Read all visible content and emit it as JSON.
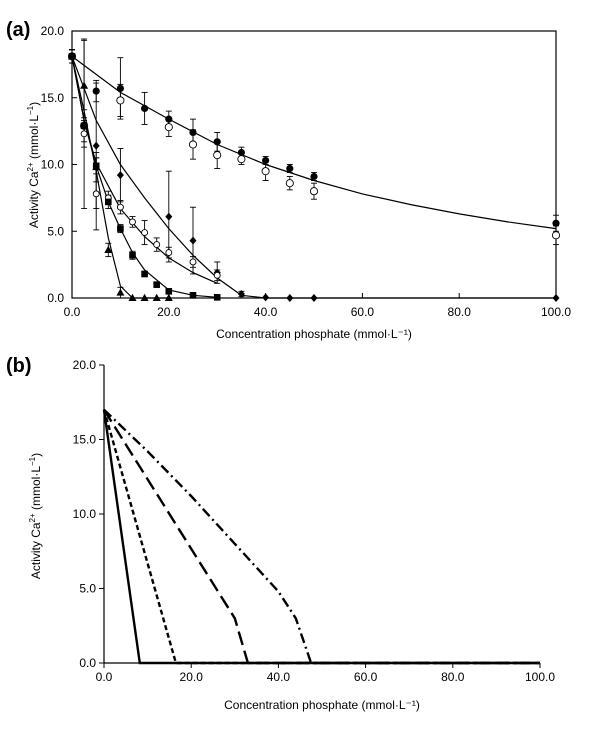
{
  "chart_data": [
    {
      "panel_label": "(a)",
      "type": "scatter",
      "xlabel": "Concentration phosphate (mmol·L⁻¹)",
      "ylabel_main": "Activity Ca",
      "ylabel_sup1": "2+",
      "ylabel_unit": " (mmol·L",
      "ylabel_sup2": "−1",
      "ylabel_close": ")",
      "xlim": [
        0,
        100
      ],
      "ylim": [
        0,
        20
      ],
      "x_ticks": [
        "0.0",
        "20.0",
        "40.0",
        "60.0",
        "80.0",
        "100.0"
      ],
      "y_ticks": [
        "0.0",
        "5.0",
        "10.0",
        "15.0",
        "20.0"
      ],
      "grid": false,
      "series": [
        {
          "marker": "circle-filled",
          "x": [
            0,
            5,
            10,
            15,
            20,
            25,
            30,
            35,
            40,
            45,
            50,
            100
          ],
          "y": [
            18.1,
            15.5,
            15.7,
            14.2,
            13.4,
            12.4,
            11.7,
            10.9,
            10.3,
            9.7,
            9.1,
            5.6
          ],
          "err": [
            0.5,
            0.8,
            2.3,
            1.2,
            0.6,
            1.0,
            0.7,
            0.4,
            0.3,
            0.3,
            0.3,
            0.6
          ],
          "fit": [
            [
              0,
              18.1
            ],
            [
              10,
              15.4
            ],
            [
              20,
              13.4
            ],
            [
              30,
              11.5
            ],
            [
              40,
              10.0
            ],
            [
              50,
              8.8
            ],
            [
              60,
              7.8
            ],
            [
              70,
              7.0
            ],
            [
              80,
              6.3
            ],
            [
              90,
              5.7
            ],
            [
              100,
              5.2
            ]
          ]
        },
        {
          "marker": "circle-open",
          "x": [
            0,
            2.5,
            10,
            20,
            25,
            30,
            35,
            40,
            45,
            50,
            100
          ],
          "y": [
            18.1,
            12.9,
            14.8,
            12.8,
            11.5,
            10.7,
            10.4,
            9.5,
            8.6,
            8.0,
            4.7
          ],
          "err": [
            0.5,
            1.2,
            1.2,
            0.7,
            1.1,
            1.0,
            0.4,
            0.7,
            0.5,
            0.6,
            0.7
          ],
          "fit": null
        },
        {
          "marker": "diamond-filled",
          "x": [
            0,
            2.5,
            5,
            10,
            20,
            25,
            30,
            35,
            40,
            45,
            50,
            100
          ],
          "y": [
            18.1,
            13.0,
            11.4,
            9.2,
            6.1,
            4.3,
            1.9,
            0.3,
            0.05,
            0.0,
            0.0,
            0.0
          ],
          "err": [
            0.5,
            6.3,
            4.7,
            2.0,
            3.4,
            2.5,
            0.8,
            0.2,
            0.0,
            0.0,
            0.0,
            0.0
          ],
          "fit": [
            [
              0,
              18.1
            ],
            [
              5,
              13.3
            ],
            [
              10,
              10.0
            ],
            [
              15,
              7.5
            ],
            [
              20,
              5.2
            ],
            [
              25,
              3.2
            ],
            [
              30,
              1.5
            ],
            [
              35,
              0.2
            ],
            [
              40,
              0.0
            ],
            [
              45,
              0.0
            ],
            [
              100,
              0.0
            ]
          ]
        },
        {
          "marker": "circle-open-small",
          "x": [
            2.5,
            5,
            7.5,
            10,
            12.5,
            15,
            17.5,
            20,
            25,
            30
          ],
          "y": [
            12.3,
            7.8,
            7.5,
            6.8,
            5.7,
            4.9,
            4.0,
            3.4,
            2.7,
            1.7
          ],
          "err": [
            1.0,
            2.7,
            0.5,
            0.5,
            0.4,
            0.9,
            0.5,
            0.4,
            0.4,
            0.4
          ],
          "fit": [
            [
              0,
              18.1
            ],
            [
              2.5,
              13.3
            ],
            [
              5,
              10.1
            ],
            [
              10,
              6.7
            ],
            [
              15,
              4.6
            ],
            [
              20,
              3.0
            ],
            [
              25,
              1.9
            ],
            [
              30,
              1.1
            ]
          ]
        },
        {
          "marker": "square-filled",
          "x": [
            0,
            2.5,
            5,
            7.5,
            10,
            12.5,
            15,
            17.5,
            20,
            25,
            30
          ],
          "y": [
            18.1,
            12.9,
            9.9,
            7.2,
            5.2,
            3.2,
            1.8,
            1.0,
            0.5,
            0.2,
            0.05
          ],
          "err": [
            0.5,
            0.6,
            0.6,
            0.5,
            0.3,
            0.3,
            0.2,
            0.2,
            0.1,
            0.1,
            0.05
          ],
          "fit": [
            [
              0,
              18.1
            ],
            [
              2.5,
              13.3
            ],
            [
              5,
              9.9
            ],
            [
              7.5,
              7.2
            ],
            [
              10,
              5.2
            ],
            [
              12.5,
              3.4
            ],
            [
              15,
              2.1
            ],
            [
              20,
              0.6
            ],
            [
              25,
              0.2
            ],
            [
              30,
              0.05
            ]
          ]
        },
        {
          "marker": "triangle-filled",
          "x": [
            0,
            2.5,
            5,
            7.5,
            10,
            12.5,
            15,
            17.5,
            20
          ],
          "y": [
            18.1,
            15.9,
            9.8,
            3.6,
            0.4,
            0.0,
            0.0,
            0.0,
            0.0
          ],
          "err": [
            0.5,
            3.5,
            1.1,
            0.5,
            0.4,
            0.0,
            0.0,
            0.0,
            0.0
          ],
          "fit": [
            [
              0,
              18.1
            ],
            [
              2.5,
              14.0
            ],
            [
              5,
              9.5
            ],
            [
              7.5,
              4.5
            ],
            [
              10,
              0.9
            ],
            [
              12.5,
              0.0
            ],
            [
              20,
              0.0
            ]
          ]
        }
      ]
    },
    {
      "panel_label": "(b)",
      "type": "line",
      "xlabel": "Concentration phosphate (mmol·L⁻¹)",
      "ylabel_main": "Activity Ca",
      "ylabel_sup1": "2+",
      "ylabel_unit": " (mmol·L",
      "ylabel_sup2": "−1",
      "ylabel_close": ")",
      "xlim": [
        0,
        100
      ],
      "ylim": [
        0,
        20
      ],
      "x_ticks": [
        "0.0",
        "20.0",
        "40.0",
        "60.0",
        "80.0",
        "100.0"
      ],
      "y_ticks": [
        "0.0",
        "5.0",
        "10.0",
        "15.0",
        "20.0"
      ],
      "grid": false,
      "series": [
        {
          "dash": "solid",
          "x": [
            0,
            8.2,
            100
          ],
          "y": [
            17.0,
            0.0,
            0.0
          ]
        },
        {
          "dash": "short-dash",
          "x": [
            0,
            16.5,
            100
          ],
          "y": [
            17.0,
            0.0,
            0.0
          ]
        },
        {
          "dash": "long-dash",
          "x": [
            0,
            30,
            33,
            100
          ],
          "y": [
            17.0,
            3.0,
            0.0,
            0.0
          ]
        },
        {
          "dash": "dash-dot",
          "x": [
            0,
            10,
            20,
            30,
            40,
            44,
            47.5,
            100
          ],
          "y": [
            17.0,
            14.2,
            11.2,
            8.0,
            4.8,
            3.0,
            0.0,
            0.0
          ]
        }
      ]
    }
  ]
}
